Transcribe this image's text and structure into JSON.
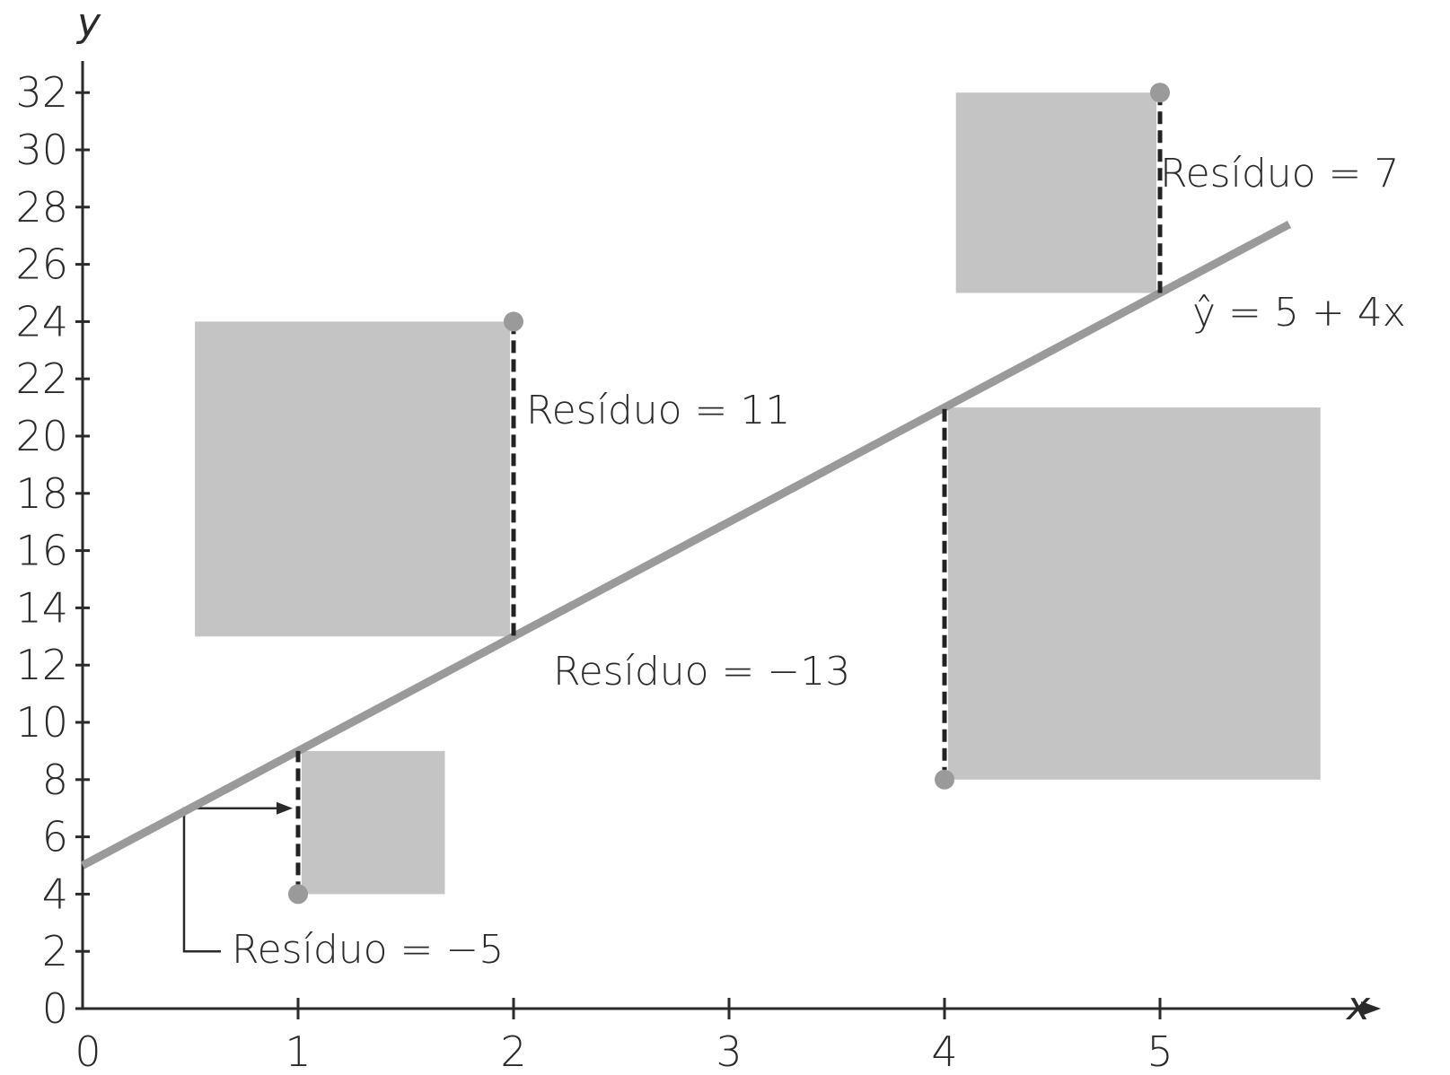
{
  "chart_data": {
    "type": "scatter",
    "xlabel": "x",
    "ylabel": "y",
    "xlim": [
      0,
      5.9
    ],
    "ylim": [
      0,
      33
    ],
    "x_ticks": [
      {
        "value": 0,
        "label": "0"
      },
      {
        "value": 1,
        "label": "1"
      },
      {
        "value": 2,
        "label": "2"
      },
      {
        "value": 3,
        "label": "3"
      },
      {
        "value": 4,
        "label": "4"
      },
      {
        "value": 5,
        "label": "5"
      }
    ],
    "y_ticks": [
      {
        "value": 0,
        "label": "0"
      },
      {
        "value": 2,
        "label": "2"
      },
      {
        "value": 4,
        "label": "4"
      },
      {
        "value": 6,
        "label": "6"
      },
      {
        "value": 8,
        "label": "8"
      },
      {
        "value": 10,
        "label": "10"
      },
      {
        "value": 12,
        "label": "12"
      },
      {
        "value": 14,
        "label": "14"
      },
      {
        "value": 16,
        "label": "16"
      },
      {
        "value": 18,
        "label": "18"
      },
      {
        "value": 20,
        "label": "20"
      },
      {
        "value": 22,
        "label": "22"
      },
      {
        "value": 24,
        "label": "24"
      },
      {
        "value": 26,
        "label": "26"
      },
      {
        "value": 28,
        "label": "28"
      },
      {
        "value": 30,
        "label": "30"
      },
      {
        "value": 32,
        "label": "32"
      }
    ],
    "points": [
      {
        "x": 1,
        "y": 4,
        "fitted": 9,
        "residual": -5
      },
      {
        "x": 2,
        "y": 24,
        "fitted": 13,
        "residual": 11
      },
      {
        "x": 4,
        "y": 8,
        "fitted": 21,
        "residual": -13
      },
      {
        "x": 5,
        "y": 32,
        "fitted": 25,
        "residual": 7
      }
    ],
    "regression_line": {
      "intercept": 5,
      "slope": 4,
      "x_range": [
        0,
        5.6
      ],
      "label": "ŷ = 5 + 4x"
    },
    "annotations": [
      {
        "text": "Resíduo = −5"
      },
      {
        "text": "Resíduo = 11"
      },
      {
        "text": "Resíduo = −13"
      },
      {
        "text": "Resíduo = 7"
      }
    ],
    "colors": {
      "square": "#c4c4c4",
      "point": "#9a9a9a",
      "line": "#9a9a9a",
      "residual": "#222222",
      "axis": "#2a2a2a"
    }
  }
}
